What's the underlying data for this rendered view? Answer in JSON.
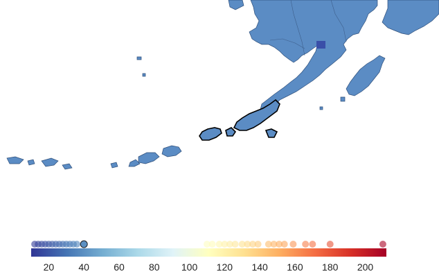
{
  "map": {
    "region": "Alaska Peninsula and Aleutian Islands",
    "land_color": "#5b8cc4",
    "highlight_color": "#3a4fa8",
    "outline_color": "#000000"
  },
  "legend": {
    "type": "continuous color bar with value dots",
    "colorscale": [
      "#313695",
      "#4575b4",
      "#74add1",
      "#abd9e9",
      "#e0f3f8",
      "#ffffbf",
      "#fee090",
      "#fdae61",
      "#f46d43",
      "#d73027",
      "#a50026"
    ],
    "range": [
      10,
      212
    ],
    "ticks": [
      "20",
      "40",
      "60",
      "80",
      "100",
      "120",
      "140",
      "160",
      "180",
      "200"
    ],
    "tick_values": [
      20,
      40,
      60,
      80,
      100,
      120,
      140,
      160,
      180,
      200
    ],
    "dot_values": [
      12,
      14,
      16,
      18,
      20,
      22,
      24,
      26,
      28,
      30,
      32,
      34,
      36,
      110,
      113,
      117,
      120,
      123,
      126,
      130,
      133,
      136,
      139,
      145,
      148,
      151,
      154,
      159,
      166,
      170,
      180,
      210
    ],
    "highlighted_value": 40
  }
}
